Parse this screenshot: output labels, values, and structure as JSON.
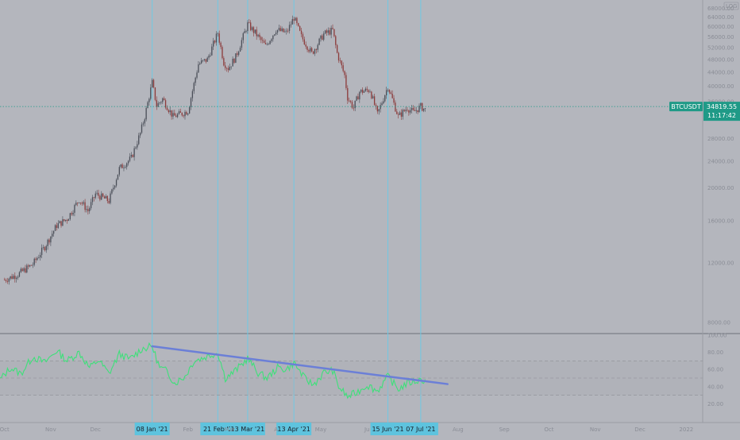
{
  "chart_data": [
    {
      "type": "candlestick",
      "symbol_badge": "BTCUSDT",
      "current_price": "34819.55",
      "countdown": "11:17:42",
      "scale_mode": "LOG",
      "price_axis_labels": [
        "68000.00",
        "64000.00",
        "60000.00",
        "56000.00",
        "52000.00",
        "48000.00",
        "44000.00",
        "40000.00",
        "36000.00",
        "32000.00",
        "28000.00",
        "24000.00",
        "20000.00",
        "16000.00",
        "12000.00",
        "8000.00"
      ],
      "ylim": [
        7500,
        70000
      ],
      "x_range": [
        "2020-09-28",
        "2022-01-12"
      ],
      "x_tick_labels": [
        {
          "date": "2020-10-01",
          "label": "Oct"
        },
        {
          "date": "2020-11-01",
          "label": "Nov"
        },
        {
          "date": "2020-12-01",
          "label": "Dec"
        },
        {
          "date": "2021-02-01",
          "label": "Feb"
        },
        {
          "date": "2021-03-01",
          "label": "Mar"
        },
        {
          "date": "2021-04-01",
          "label": "A"
        },
        {
          "date": "2021-05-01",
          "label": "May"
        },
        {
          "date": "2021-06-01",
          "label": "Ju"
        },
        {
          "date": "2021-08-01",
          "label": "Aug"
        },
        {
          "date": "2021-09-01",
          "label": "Sep"
        },
        {
          "date": "2021-10-01",
          "label": "Oct"
        },
        {
          "date": "2021-11-01",
          "label": "Nov"
        },
        {
          "date": "2021-12-01",
          "label": "Dec"
        },
        {
          "date": "2022-01-01",
          "label": "2022"
        }
      ],
      "marker_dates": [
        {
          "date": "2021-01-08",
          "label": "08 Jan '21"
        },
        {
          "date": "2021-02-21",
          "label": "21 Feb '2"
        },
        {
          "date": "2021-03-13",
          "label": "13 Mar '21"
        },
        {
          "date": "2021-04-13",
          "label": "13 Apr '21"
        },
        {
          "date": "2021-06-15",
          "label": "15 Jun '21"
        },
        {
          "date": "2021-07-07",
          "label": "07 Jul '21"
        }
      ],
      "price_path": [
        {
          "date": "2020-10-01",
          "value": 10700
        },
        {
          "date": "2020-10-10",
          "value": 11100
        },
        {
          "date": "2020-10-20",
          "value": 11900
        },
        {
          "date": "2020-10-28",
          "value": 13400
        },
        {
          "date": "2020-11-05",
          "value": 15500
        },
        {
          "date": "2020-11-12",
          "value": 16200
        },
        {
          "date": "2020-11-20",
          "value": 18500
        },
        {
          "date": "2020-11-26",
          "value": 17100
        },
        {
          "date": "2020-12-01",
          "value": 19200
        },
        {
          "date": "2020-12-10",
          "value": 18300
        },
        {
          "date": "2020-12-17",
          "value": 22800
        },
        {
          "date": "2020-12-25",
          "value": 24500
        },
        {
          "date": "2020-12-31",
          "value": 29000
        },
        {
          "date": "2021-01-03",
          "value": 32500
        },
        {
          "date": "2021-01-08",
          "value": 41000
        },
        {
          "date": "2021-01-11",
          "value": 35000
        },
        {
          "date": "2021-01-15",
          "value": 36700
        },
        {
          "date": "2021-01-22",
          "value": 32500
        },
        {
          "date": "2021-01-28",
          "value": 33200
        },
        {
          "date": "2021-02-01",
          "value": 33800
        },
        {
          "date": "2021-02-08",
          "value": 46500
        },
        {
          "date": "2021-02-14",
          "value": 48000
        },
        {
          "date": "2021-02-21",
          "value": 57500
        },
        {
          "date": "2021-02-25",
          "value": 47000
        },
        {
          "date": "2021-02-28",
          "value": 45200
        },
        {
          "date": "2021-03-05",
          "value": 48800
        },
        {
          "date": "2021-03-13",
          "value": 61000
        },
        {
          "date": "2021-03-18",
          "value": 57500
        },
        {
          "date": "2021-03-25",
          "value": 52500
        },
        {
          "date": "2021-04-01",
          "value": 58800
        },
        {
          "date": "2021-04-08",
          "value": 57500
        },
        {
          "date": "2021-04-13",
          "value": 63800
        },
        {
          "date": "2021-04-18",
          "value": 56000
        },
        {
          "date": "2021-04-25",
          "value": 50000
        },
        {
          "date": "2021-05-03",
          "value": 57000
        },
        {
          "date": "2021-05-09",
          "value": 58500
        },
        {
          "date": "2021-05-12",
          "value": 50000
        },
        {
          "date": "2021-05-17",
          "value": 43000
        },
        {
          "date": "2021-05-19",
          "value": 37000
        },
        {
          "date": "2021-05-23",
          "value": 34500
        },
        {
          "date": "2021-05-27",
          "value": 38500
        },
        {
          "date": "2021-06-03",
          "value": 39000
        },
        {
          "date": "2021-06-08",
          "value": 33000
        },
        {
          "date": "2021-06-15",
          "value": 40000
        },
        {
          "date": "2021-06-22",
          "value": 32500
        },
        {
          "date": "2021-06-28",
          "value": 34500
        },
        {
          "date": "2021-07-02",
          "value": 33500
        },
        {
          "date": "2021-07-07",
          "value": 34800
        },
        {
          "date": "2021-07-10",
          "value": 34100
        }
      ],
      "rsi_axis_labels": [
        "100.00",
        "80.00",
        "60.00",
        "40.00",
        "20.00"
      ],
      "rsi_levels": [
        70,
        50,
        30
      ],
      "rsi_range": [
        0,
        100
      ],
      "rsi_path": [
        {
          "date": "2020-09-28",
          "value": 48
        },
        {
          "date": "2020-10-05",
          "value": 62
        },
        {
          "date": "2020-10-12",
          "value": 55
        },
        {
          "date": "2020-10-20",
          "value": 75
        },
        {
          "date": "2020-10-28",
          "value": 68
        },
        {
          "date": "2020-11-05",
          "value": 82
        },
        {
          "date": "2020-11-12",
          "value": 70
        },
        {
          "date": "2020-11-20",
          "value": 80
        },
        {
          "date": "2020-11-27",
          "value": 62
        },
        {
          "date": "2020-12-03",
          "value": 71
        },
        {
          "date": "2020-12-10",
          "value": 55
        },
        {
          "date": "2020-12-17",
          "value": 78
        },
        {
          "date": "2020-12-24",
          "value": 72
        },
        {
          "date": "2021-01-01",
          "value": 84
        },
        {
          "date": "2021-01-08",
          "value": 87
        },
        {
          "date": "2021-01-13",
          "value": 62
        },
        {
          "date": "2021-01-18",
          "value": 58
        },
        {
          "date": "2021-01-23",
          "value": 44
        },
        {
          "date": "2021-01-30",
          "value": 52
        },
        {
          "date": "2021-02-05",
          "value": 70
        },
        {
          "date": "2021-02-12",
          "value": 74
        },
        {
          "date": "2021-02-21",
          "value": 80
        },
        {
          "date": "2021-02-26",
          "value": 50
        },
        {
          "date": "2021-03-03",
          "value": 56
        },
        {
          "date": "2021-03-08",
          "value": 64
        },
        {
          "date": "2021-03-13",
          "value": 73
        },
        {
          "date": "2021-03-20",
          "value": 56
        },
        {
          "date": "2021-03-26",
          "value": 50
        },
        {
          "date": "2021-04-02",
          "value": 62
        },
        {
          "date": "2021-04-08",
          "value": 60
        },
        {
          "date": "2021-04-13",
          "value": 68
        },
        {
          "date": "2021-04-20",
          "value": 50
        },
        {
          "date": "2021-04-26",
          "value": 42
        },
        {
          "date": "2021-05-03",
          "value": 56
        },
        {
          "date": "2021-05-09",
          "value": 59
        },
        {
          "date": "2021-05-13",
          "value": 40
        },
        {
          "date": "2021-05-19",
          "value": 28
        },
        {
          "date": "2021-05-25",
          "value": 33
        },
        {
          "date": "2021-06-01",
          "value": 42
        },
        {
          "date": "2021-06-08",
          "value": 35
        },
        {
          "date": "2021-06-15",
          "value": 52
        },
        {
          "date": "2021-06-22",
          "value": 37
        },
        {
          "date": "2021-06-28",
          "value": 44
        },
        {
          "date": "2021-07-03",
          "value": 46
        },
        {
          "date": "2021-07-07",
          "value": 48
        },
        {
          "date": "2021-07-10",
          "value": 47
        }
      ],
      "trendline": {
        "start": {
          "date": "2021-01-08",
          "value": 87
        },
        "end": {
          "date": "2021-07-25",
          "value": 43
        }
      },
      "colors": {
        "background": "#b4b6bd",
        "candle_up": "#4a4e58",
        "candle_down": "#8c3b3b",
        "rsi_line": "#3ee07a",
        "trendline": "#6b7fd7",
        "marker_line": "#69cbe8",
        "marker_badge": "#5ec3de",
        "price_badge": "#1f9a87",
        "grid_dash": "#8e9098"
      }
    }
  ]
}
